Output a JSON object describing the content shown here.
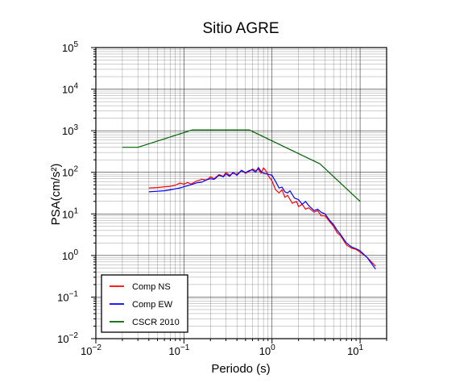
{
  "chart_data": {
    "type": "line",
    "title": "Sitio AGRE",
    "xlabel": "Periodo (s)",
    "ylabel": "PSA(cm/s²)",
    "x_scale": "log",
    "y_scale": "log",
    "xlim": [
      0.01,
      20
    ],
    "ylim": [
      0.01,
      100000
    ],
    "x_ticks": [
      {
        "value": 0.01,
        "base": "10",
        "exp": "−2"
      },
      {
        "value": 0.1,
        "base": "10",
        "exp": "−1"
      },
      {
        "value": 1,
        "base": "10",
        "exp": "0"
      },
      {
        "value": 10,
        "base": "10",
        "exp": "1"
      }
    ],
    "y_ticks": [
      {
        "value": 0.01,
        "base": "10",
        "exp": "−2"
      },
      {
        "value": 0.1,
        "base": "10",
        "exp": "−1"
      },
      {
        "value": 1,
        "base": "10",
        "exp": "0"
      },
      {
        "value": 10,
        "base": "10",
        "exp": "1"
      },
      {
        "value": 100,
        "base": "10",
        "exp": "2"
      },
      {
        "value": 1000,
        "base": "10",
        "exp": "3"
      },
      {
        "value": 10000,
        "base": "10",
        "exp": "4"
      },
      {
        "value": 100000,
        "base": "10",
        "exp": "5"
      }
    ],
    "grid": true,
    "legend_position": "bottom-left",
    "series": [
      {
        "name": "Comp NS",
        "color": "#ff0000",
        "points": [
          [
            0.04,
            42
          ],
          [
            0.05,
            43
          ],
          [
            0.06,
            45
          ],
          [
            0.07,
            46
          ],
          [
            0.08,
            49
          ],
          [
            0.09,
            55
          ],
          [
            0.1,
            52
          ],
          [
            0.11,
            57
          ],
          [
            0.12,
            52
          ],
          [
            0.14,
            62
          ],
          [
            0.16,
            68
          ],
          [
            0.18,
            65
          ],
          [
            0.2,
            78
          ],
          [
            0.22,
            70
          ],
          [
            0.25,
            88
          ],
          [
            0.28,
            80
          ],
          [
            0.3,
            100
          ],
          [
            0.33,
            85
          ],
          [
            0.36,
            95
          ],
          [
            0.4,
            90
          ],
          [
            0.45,
            110
          ],
          [
            0.5,
            95
          ],
          [
            0.55,
            105
          ],
          [
            0.6,
            120
          ],
          [
            0.65,
            110
          ],
          [
            0.7,
            118
          ],
          [
            0.75,
            95
          ],
          [
            0.8,
            128
          ],
          [
            0.85,
            110
          ],
          [
            0.9,
            85
          ],
          [
            1.0,
            62
          ],
          [
            1.1,
            38
          ],
          [
            1.2,
            32
          ],
          [
            1.3,
            38
          ],
          [
            1.4,
            25
          ],
          [
            1.5,
            28
          ],
          [
            1.7,
            18
          ],
          [
            1.9,
            20
          ],
          [
            2.0,
            15
          ],
          [
            2.2,
            17
          ],
          [
            2.4,
            13
          ],
          [
            2.6,
            14
          ],
          [
            3.0,
            11
          ],
          [
            3.3,
            12
          ],
          [
            3.6,
            9
          ],
          [
            4.0,
            9
          ],
          [
            4.5,
            6.5
          ],
          [
            5.0,
            5
          ],
          [
            5.5,
            3.5
          ],
          [
            6.0,
            3
          ],
          [
            6.5,
            2.3
          ],
          [
            7.0,
            1.8
          ],
          [
            8.0,
            1.5
          ],
          [
            9.0,
            1.4
          ],
          [
            10.0,
            1.2
          ],
          [
            12.0,
            0.9
          ],
          [
            15.0,
            0.55
          ]
        ]
      },
      {
        "name": "Comp EW",
        "color": "#0000ff",
        "points": [
          [
            0.04,
            34
          ],
          [
            0.05,
            35
          ],
          [
            0.06,
            36
          ],
          [
            0.07,
            38
          ],
          [
            0.08,
            40
          ],
          [
            0.09,
            42
          ],
          [
            0.1,
            45
          ],
          [
            0.12,
            50
          ],
          [
            0.14,
            56
          ],
          [
            0.16,
            58
          ],
          [
            0.18,
            66
          ],
          [
            0.2,
            70
          ],
          [
            0.22,
            68
          ],
          [
            0.25,
            85
          ],
          [
            0.28,
            78
          ],
          [
            0.3,
            92
          ],
          [
            0.33,
            80
          ],
          [
            0.36,
            100
          ],
          [
            0.4,
            85
          ],
          [
            0.45,
            112
          ],
          [
            0.5,
            98
          ],
          [
            0.55,
            110
          ],
          [
            0.6,
            115
          ],
          [
            0.65,
            100
          ],
          [
            0.7,
            130
          ],
          [
            0.75,
            105
          ],
          [
            0.8,
            95
          ],
          [
            0.9,
            90
          ],
          [
            1.0,
            85
          ],
          [
            1.1,
            60
          ],
          [
            1.2,
            42
          ],
          [
            1.3,
            44
          ],
          [
            1.4,
            34
          ],
          [
            1.5,
            32
          ],
          [
            1.6,
            36
          ],
          [
            1.8,
            24
          ],
          [
            2.0,
            22
          ],
          [
            2.2,
            17
          ],
          [
            2.4,
            20
          ],
          [
            2.6,
            16
          ],
          [
            3.0,
            12
          ],
          [
            3.3,
            13
          ],
          [
            3.6,
            11
          ],
          [
            4.0,
            10
          ],
          [
            4.5,
            7
          ],
          [
            5.0,
            5.5
          ],
          [
            5.5,
            4
          ],
          [
            6.0,
            3.2
          ],
          [
            6.5,
            2.5
          ],
          [
            7.0,
            2
          ],
          [
            8.0,
            1.6
          ],
          [
            9.0,
            1.45
          ],
          [
            10.0,
            1.3
          ],
          [
            12.0,
            0.9
          ],
          [
            15.0,
            0.47
          ]
        ]
      },
      {
        "name": "CSCR 2010",
        "color": "#006400",
        "points": [
          [
            0.02,
            400
          ],
          [
            0.03,
            400
          ],
          [
            0.125,
            1050
          ],
          [
            0.55,
            1050
          ],
          [
            3.5,
            160
          ],
          [
            10.0,
            20
          ]
        ]
      }
    ]
  }
}
